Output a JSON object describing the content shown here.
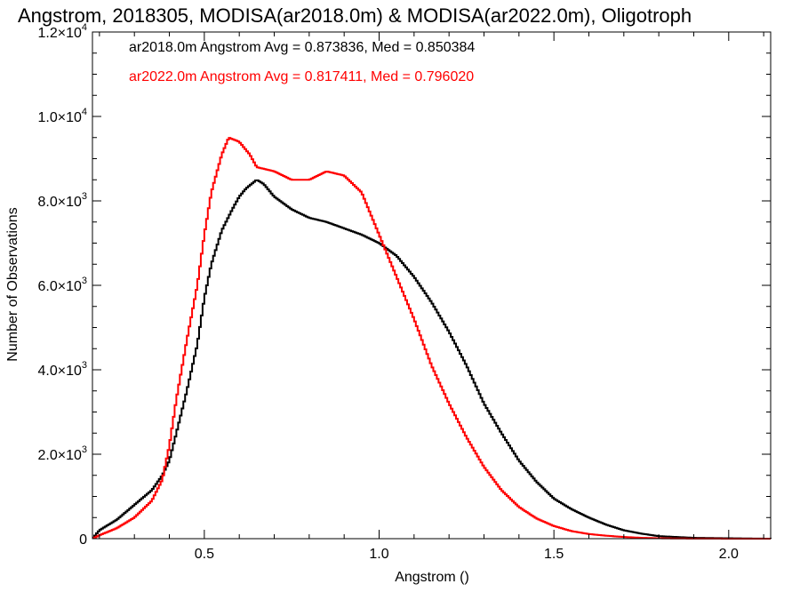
{
  "chart_data": {
    "type": "line",
    "title": "Angstrom, 2018305, MODISA(ar2018.0m) & MODISA(ar2022.0m), Oligotroph",
    "xlabel": "Angstrom ()",
    "ylabel": "Number of Observations",
    "xlim": [
      0.18,
      2.12
    ],
    "ylim": [
      0,
      12000
    ],
    "x_ticks": [
      {
        "value": 0.5,
        "label": "0.5"
      },
      {
        "value": 1.0,
        "label": "1.0"
      },
      {
        "value": 1.5,
        "label": "1.5"
      },
      {
        "value": 2.0,
        "label": "2.0"
      }
    ],
    "y_ticks": [
      {
        "value": 0,
        "mant": "0",
        "exp": ""
      },
      {
        "value": 2000,
        "mant": "2.0×10",
        "exp": "3"
      },
      {
        "value": 4000,
        "mant": "4.0×10",
        "exp": "3"
      },
      {
        "value": 6000,
        "mant": "6.0×10",
        "exp": "3"
      },
      {
        "value": 8000,
        "mant": "8.0×10",
        "exp": "3"
      },
      {
        "value": 10000,
        "mant": "1.0×10",
        "exp": "4"
      },
      {
        "value": 12000,
        "mant": "1.2×10",
        "exp": "4"
      }
    ],
    "legend": [
      {
        "text": "ar2018.0m Angstrom Avg = 0.873836, Med = 0.850384",
        "color": "#000000"
      },
      {
        "text": "ar2022.0m Angstrom Avg = 0.817411, Med = 0.796020",
        "color": "#ff0000"
      }
    ],
    "legend_position": "top-left",
    "series": [
      {
        "color": "#000000",
        "x": [
          0.18,
          0.2,
          0.25,
          0.3,
          0.35,
          0.38,
          0.4,
          0.42,
          0.45,
          0.48,
          0.5,
          0.52,
          0.55,
          0.58,
          0.6,
          0.62,
          0.65,
          0.67,
          0.7,
          0.75,
          0.8,
          0.85,
          0.9,
          0.95,
          1.0,
          1.05,
          1.1,
          1.15,
          1.2,
          1.25,
          1.3,
          1.35,
          1.4,
          1.45,
          1.5,
          1.55,
          1.6,
          1.65,
          1.7,
          1.75,
          1.8,
          1.85,
          1.9,
          1.95,
          2.0,
          2.05,
          2.12
        ],
        "y": [
          0,
          200,
          450,
          800,
          1150,
          1500,
          1850,
          2500,
          3500,
          4600,
          5700,
          6500,
          7300,
          7800,
          8100,
          8300,
          8500,
          8400,
          8100,
          7800,
          7600,
          7500,
          7350,
          7200,
          7000,
          6700,
          6200,
          5600,
          4900,
          4100,
          3200,
          2500,
          1850,
          1350,
          950,
          700,
          500,
          330,
          200,
          120,
          60,
          40,
          20,
          15,
          10,
          5,
          0
        ]
      },
      {
        "color": "#ff0000",
        "x": [
          0.18,
          0.2,
          0.25,
          0.3,
          0.35,
          0.38,
          0.4,
          0.42,
          0.45,
          0.48,
          0.5,
          0.52,
          0.55,
          0.57,
          0.6,
          0.63,
          0.65,
          0.7,
          0.75,
          0.8,
          0.85,
          0.9,
          0.95,
          1.0,
          1.05,
          1.1,
          1.15,
          1.2,
          1.25,
          1.3,
          1.35,
          1.4,
          1.45,
          1.5,
          1.55,
          1.6,
          1.65,
          1.7,
          1.75,
          1.8,
          1.85,
          1.9,
          1.95,
          2.0,
          2.05,
          2.12
        ],
        "y": [
          0,
          80,
          250,
          500,
          900,
          1400,
          2200,
          3300,
          4700,
          6000,
          7200,
          8200,
          9100,
          9500,
          9400,
          9100,
          8800,
          8700,
          8500,
          8500,
          8700,
          8600,
          8200,
          7200,
          6200,
          5200,
          4100,
          3200,
          2400,
          1700,
          1150,
          750,
          480,
          300,
          180,
          110,
          70,
          40,
          20,
          10,
          5,
          3,
          2,
          1,
          0,
          0
        ]
      }
    ]
  }
}
